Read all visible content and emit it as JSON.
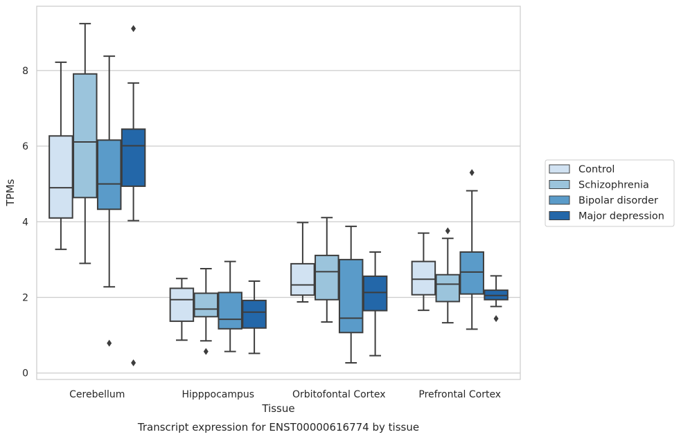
{
  "chart_data": {
    "type": "box",
    "title": "Transcript expression for ENST00000616774 by tissue",
    "xlabel": "Tissue",
    "ylabel": "TPMs",
    "ylim": [
      -0.17,
      9.7
    ],
    "yticks": [
      0,
      2,
      4,
      6,
      8
    ],
    "grid": "horizontal",
    "legend_position": "right",
    "categories": [
      "Cerebellum",
      "Hipppocampus",
      "Orbitofontal Cortex",
      "Prefrontal Cortex"
    ],
    "series": [
      {
        "name": "Control",
        "color": "#d1e2f2",
        "boxes": [
          {
            "whislo": 3.27,
            "q1": 4.1,
            "med": 4.9,
            "q3": 6.27,
            "whishi": 8.22,
            "fliers": []
          },
          {
            "whislo": 0.87,
            "q1": 1.37,
            "med": 1.94,
            "q3": 2.24,
            "whishi": 2.5,
            "fliers": []
          },
          {
            "whislo": 1.88,
            "q1": 2.06,
            "med": 2.33,
            "q3": 2.89,
            "whishi": 3.98,
            "fliers": []
          },
          {
            "whislo": 1.66,
            "q1": 2.07,
            "med": 2.48,
            "q3": 2.95,
            "whishi": 3.7,
            "fliers": []
          }
        ]
      },
      {
        "name": "Schizophrenia",
        "color": "#9bc4dc",
        "boxes": [
          {
            "whislo": 2.9,
            "q1": 4.64,
            "med": 6.11,
            "q3": 7.91,
            "whishi": 9.24,
            "fliers": []
          },
          {
            "whislo": 0.85,
            "q1": 1.49,
            "med": 1.69,
            "q3": 2.11,
            "whishi": 2.76,
            "fliers": [
              0.57
            ]
          },
          {
            "whislo": 1.35,
            "q1": 1.94,
            "med": 2.68,
            "q3": 3.11,
            "whishi": 4.11,
            "fliers": []
          },
          {
            "whislo": 1.33,
            "q1": 1.89,
            "med": 2.35,
            "q3": 2.6,
            "whishi": 3.56,
            "fliers": [
              3.76
            ]
          }
        ]
      },
      {
        "name": "Bipolar disorder",
        "color": "#5a9bc9",
        "boxes": [
          {
            "whislo": 2.28,
            "q1": 4.33,
            "med": 5.0,
            "q3": 6.16,
            "whishi": 8.38,
            "fliers": [
              0.79
            ]
          },
          {
            "whislo": 0.57,
            "q1": 1.17,
            "med": 1.42,
            "q3": 2.13,
            "whishi": 2.95,
            "fliers": []
          },
          {
            "whislo": 0.27,
            "q1": 1.07,
            "med": 1.45,
            "q3": 3.0,
            "whishi": 3.88,
            "fliers": []
          },
          {
            "whislo": 1.16,
            "q1": 2.09,
            "med": 2.67,
            "q3": 3.2,
            "whishi": 4.82,
            "fliers": [
              5.3
            ]
          }
        ]
      },
      {
        "name": "Major depression",
        "color": "#2367a9",
        "boxes": [
          {
            "whislo": 4.03,
            "q1": 4.94,
            "med": 6.01,
            "q3": 6.45,
            "whishi": 7.67,
            "fliers": [
              9.11,
              0.27
            ]
          },
          {
            "whislo": 0.52,
            "q1": 1.19,
            "med": 1.61,
            "q3": 1.92,
            "whishi": 2.43,
            "fliers": []
          },
          {
            "whislo": 0.46,
            "q1": 1.65,
            "med": 2.13,
            "q3": 2.56,
            "whishi": 3.2,
            "fliers": []
          },
          {
            "whislo": 1.76,
            "q1": 1.94,
            "med": 2.05,
            "q3": 2.19,
            "whishi": 2.57,
            "fliers": [
              1.44
            ]
          }
        ]
      }
    ]
  }
}
